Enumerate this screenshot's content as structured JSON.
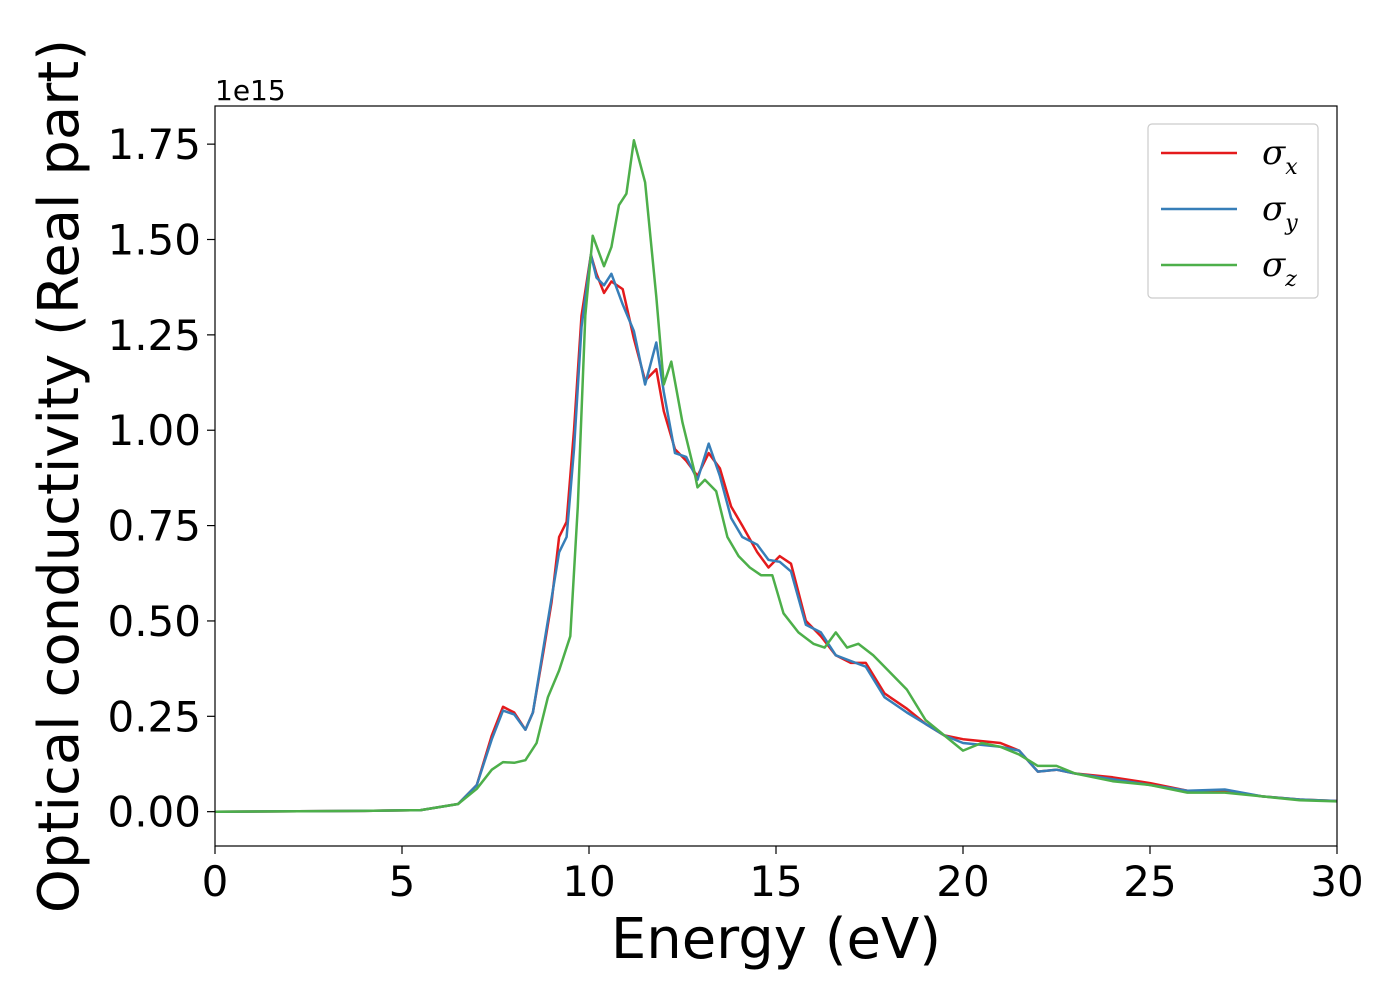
{
  "chart_data": {
    "type": "line",
    "xlabel": "Energy (eV)",
    "ylabel": "Optical conductivity (Real part)",
    "offset_label": "1e15",
    "xlim": [
      0,
      30
    ],
    "ylim": [
      -0.09,
      1.85
    ],
    "y_scale_multiplier": 1000000000000000.0,
    "grid": false,
    "legend_position": "top-right",
    "x_ticks": [
      0,
      5,
      10,
      15,
      20,
      25,
      30
    ],
    "x_tick_labels": [
      "0",
      "5",
      "10",
      "15",
      "20",
      "25",
      "30"
    ],
    "y_ticks": [
      0.0,
      0.25,
      0.5,
      0.75,
      1.0,
      1.25,
      1.5,
      1.75
    ],
    "y_tick_labels": [
      "0.00",
      "0.25",
      "0.50",
      "0.75",
      "1.00",
      "1.25",
      "1.50",
      "1.75"
    ],
    "series": [
      {
        "name": "σx",
        "symbol": "σ",
        "subscript": "x",
        "color": "#e41a1c",
        "points": [
          [
            0,
            0
          ],
          [
            4,
            0.002
          ],
          [
            5.5,
            0.004
          ],
          [
            6.5,
            0.02
          ],
          [
            7,
            0.07
          ],
          [
            7.4,
            0.2
          ],
          [
            7.7,
            0.275
          ],
          [
            8,
            0.26
          ],
          [
            8.3,
            0.215
          ],
          [
            8.5,
            0.26
          ],
          [
            8.8,
            0.43
          ],
          [
            9.0,
            0.55
          ],
          [
            9.2,
            0.72
          ],
          [
            9.4,
            0.76
          ],
          [
            9.6,
            1.0
          ],
          [
            9.8,
            1.3
          ],
          [
            10.05,
            1.46
          ],
          [
            10.2,
            1.41
          ],
          [
            10.4,
            1.36
          ],
          [
            10.6,
            1.39
          ],
          [
            10.9,
            1.37
          ],
          [
            11.2,
            1.24
          ],
          [
            11.5,
            1.13
          ],
          [
            11.8,
            1.16
          ],
          [
            12.0,
            1.05
          ],
          [
            12.3,
            0.95
          ],
          [
            12.6,
            0.92
          ],
          [
            12.9,
            0.88
          ],
          [
            13.2,
            0.94
          ],
          [
            13.5,
            0.9
          ],
          [
            13.8,
            0.8
          ],
          [
            14.1,
            0.75
          ],
          [
            14.5,
            0.68
          ],
          [
            14.8,
            0.64
          ],
          [
            15.1,
            0.67
          ],
          [
            15.4,
            0.65
          ],
          [
            15.8,
            0.5
          ],
          [
            16.2,
            0.46
          ],
          [
            16.6,
            0.41
          ],
          [
            17.0,
            0.39
          ],
          [
            17.4,
            0.39
          ],
          [
            17.9,
            0.31
          ],
          [
            18.5,
            0.27
          ],
          [
            19.0,
            0.23
          ],
          [
            19.5,
            0.2
          ],
          [
            20.0,
            0.19
          ],
          [
            20.5,
            0.185
          ],
          [
            21.0,
            0.18
          ],
          [
            21.5,
            0.16
          ],
          [
            22.0,
            0.105
          ],
          [
            22.5,
            0.11
          ],
          [
            23.0,
            0.1
          ],
          [
            24.0,
            0.09
          ],
          [
            25.0,
            0.075
          ],
          [
            26.0,
            0.055
          ],
          [
            27.0,
            0.055
          ],
          [
            28.0,
            0.04
          ],
          [
            29.0,
            0.032
          ],
          [
            30.0,
            0.028
          ]
        ]
      },
      {
        "name": "σy",
        "symbol": "σ",
        "subscript": "y",
        "color": "#377eb8",
        "points": [
          [
            0,
            0
          ],
          [
            4,
            0.002
          ],
          [
            5.5,
            0.004
          ],
          [
            6.5,
            0.02
          ],
          [
            7,
            0.07
          ],
          [
            7.4,
            0.19
          ],
          [
            7.7,
            0.265
          ],
          [
            8,
            0.255
          ],
          [
            8.3,
            0.215
          ],
          [
            8.5,
            0.26
          ],
          [
            8.8,
            0.44
          ],
          [
            9.0,
            0.56
          ],
          [
            9.2,
            0.68
          ],
          [
            9.4,
            0.72
          ],
          [
            9.6,
            0.95
          ],
          [
            9.8,
            1.27
          ],
          [
            10.05,
            1.46
          ],
          [
            10.2,
            1.4
          ],
          [
            10.4,
            1.38
          ],
          [
            10.6,
            1.41
          ],
          [
            10.9,
            1.33
          ],
          [
            11.2,
            1.26
          ],
          [
            11.5,
            1.12
          ],
          [
            11.8,
            1.23
          ],
          [
            12.0,
            1.1
          ],
          [
            12.3,
            0.94
          ],
          [
            12.6,
            0.93
          ],
          [
            12.9,
            0.87
          ],
          [
            13.2,
            0.965
          ],
          [
            13.5,
            0.88
          ],
          [
            13.8,
            0.77
          ],
          [
            14.1,
            0.72
          ],
          [
            14.5,
            0.7
          ],
          [
            14.8,
            0.66
          ],
          [
            15.1,
            0.655
          ],
          [
            15.4,
            0.63
          ],
          [
            15.8,
            0.49
          ],
          [
            16.2,
            0.47
          ],
          [
            16.6,
            0.41
          ],
          [
            17.0,
            0.395
          ],
          [
            17.4,
            0.38
          ],
          [
            17.9,
            0.3
          ],
          [
            18.5,
            0.26
          ],
          [
            19.0,
            0.23
          ],
          [
            19.5,
            0.2
          ],
          [
            20.0,
            0.18
          ],
          [
            20.5,
            0.175
          ],
          [
            21.0,
            0.17
          ],
          [
            21.5,
            0.16
          ],
          [
            22.0,
            0.105
          ],
          [
            22.5,
            0.11
          ],
          [
            23.0,
            0.1
          ],
          [
            24.0,
            0.085
          ],
          [
            25.0,
            0.07
          ],
          [
            26.0,
            0.055
          ],
          [
            27.0,
            0.058
          ],
          [
            28.0,
            0.04
          ],
          [
            29.0,
            0.032
          ],
          [
            30.0,
            0.028
          ]
        ]
      },
      {
        "name": "σz",
        "symbol": "σ",
        "subscript": "z",
        "color": "#4daf4a",
        "points": [
          [
            0,
            0
          ],
          [
            4,
            0.002
          ],
          [
            5.5,
            0.004
          ],
          [
            6.5,
            0.02
          ],
          [
            7,
            0.06
          ],
          [
            7.4,
            0.11
          ],
          [
            7.7,
            0.13
          ],
          [
            8,
            0.128
          ],
          [
            8.3,
            0.135
          ],
          [
            8.6,
            0.18
          ],
          [
            8.9,
            0.3
          ],
          [
            9.2,
            0.37
          ],
          [
            9.5,
            0.46
          ],
          [
            9.7,
            0.8
          ],
          [
            9.9,
            1.3
          ],
          [
            10.1,
            1.51
          ],
          [
            10.4,
            1.43
          ],
          [
            10.6,
            1.48
          ],
          [
            10.8,
            1.59
          ],
          [
            11.0,
            1.62
          ],
          [
            11.2,
            1.76
          ],
          [
            11.5,
            1.65
          ],
          [
            11.8,
            1.35
          ],
          [
            12.0,
            1.12
          ],
          [
            12.2,
            1.18
          ],
          [
            12.5,
            1.02
          ],
          [
            12.8,
            0.9
          ],
          [
            12.9,
            0.85
          ],
          [
            13.1,
            0.87
          ],
          [
            13.4,
            0.84
          ],
          [
            13.7,
            0.72
          ],
          [
            14.0,
            0.67
          ],
          [
            14.3,
            0.64
          ],
          [
            14.6,
            0.62
          ],
          [
            14.9,
            0.62
          ],
          [
            15.2,
            0.52
          ],
          [
            15.6,
            0.47
          ],
          [
            16.0,
            0.44
          ],
          [
            16.3,
            0.43
          ],
          [
            16.6,
            0.47
          ],
          [
            16.9,
            0.43
          ],
          [
            17.2,
            0.44
          ],
          [
            17.6,
            0.41
          ],
          [
            18.0,
            0.37
          ],
          [
            18.5,
            0.32
          ],
          [
            19.0,
            0.24
          ],
          [
            19.5,
            0.2
          ],
          [
            20.0,
            0.16
          ],
          [
            20.5,
            0.18
          ],
          [
            21.0,
            0.17
          ],
          [
            21.5,
            0.15
          ],
          [
            22.0,
            0.12
          ],
          [
            22.5,
            0.12
          ],
          [
            23.0,
            0.1
          ],
          [
            24.0,
            0.08
          ],
          [
            25.0,
            0.07
          ],
          [
            26.0,
            0.05
          ],
          [
            27.0,
            0.05
          ],
          [
            28.0,
            0.04
          ],
          [
            29.0,
            0.03
          ],
          [
            30.0,
            0.027
          ]
        ]
      }
    ]
  }
}
